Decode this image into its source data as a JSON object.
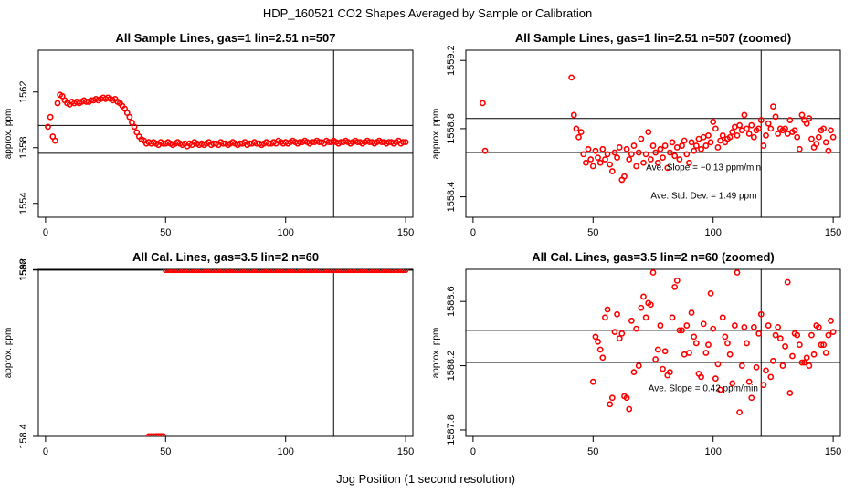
{
  "figure": {
    "title": "HDP_160521  CO2 Shapes Averaged by Sample or Calibration",
    "xlabel": "Jog Position (1 second resolution)"
  },
  "chart_data": [
    {
      "type": "scatter",
      "title": "All Sample Lines, gas=1 lin=2.51 n=507",
      "ylabel": "approx. ppm",
      "xlim": [
        -3,
        153
      ],
      "ylim": [
        1553,
        1565
      ],
      "xticks": [
        0,
        50,
        100,
        150
      ],
      "yticks": [
        1554,
        1558,
        1562
      ],
      "ytick_labels": [
        "1554",
        "1558",
        "1562"
      ],
      "hlines": [
        1559.6,
        1557.6
      ],
      "vlines": [
        120
      ],
      "annotations": [],
      "marker_color": "#ff0000",
      "x": [
        1,
        2,
        3,
        4,
        5,
        6,
        7,
        8,
        9,
        10,
        11,
        12,
        13,
        14,
        15,
        16,
        17,
        18,
        19,
        20,
        21,
        22,
        23,
        24,
        25,
        26,
        27,
        28,
        29,
        30,
        31,
        32,
        33,
        34,
        35,
        36,
        37,
        38,
        39,
        40,
        41,
        42,
        43,
        44,
        45,
        46,
        47,
        48,
        49,
        50,
        51,
        52,
        53,
        54,
        55,
        56,
        57,
        58,
        59,
        60,
        61,
        62,
        63,
        64,
        65,
        66,
        67,
        68,
        69,
        70,
        71,
        72,
        73,
        74,
        75,
        76,
        77,
        78,
        79,
        80,
        81,
        82,
        83,
        84,
        85,
        86,
        87,
        88,
        89,
        90,
        91,
        92,
        93,
        94,
        95,
        96,
        97,
        98,
        99,
        100,
        101,
        102,
        103,
        104,
        105,
        106,
        107,
        108,
        109,
        110,
        111,
        112,
        113,
        114,
        115,
        116,
        117,
        118,
        119,
        120,
        121,
        122,
        123,
        124,
        125,
        126,
        127,
        128,
        129,
        130,
        131,
        132,
        133,
        134,
        135,
        136,
        137,
        138,
        139,
        140,
        141,
        142,
        143,
        144,
        145,
        146,
        147,
        148,
        149,
        150
      ],
      "y": [
        1559.5,
        1560.2,
        1558.8,
        1558.5,
        1561.2,
        1561.8,
        1561.7,
        1561.4,
        1561.2,
        1561.1,
        1561.3,
        1561.2,
        1561.3,
        1561.2,
        1561.3,
        1561.4,
        1561.3,
        1561.3,
        1561.4,
        1561.4,
        1561.5,
        1561.4,
        1561.5,
        1561.6,
        1561.5,
        1561.6,
        1561.5,
        1561.4,
        1561.5,
        1561.3,
        1561.2,
        1561.0,
        1560.8,
        1560.5,
        1560.2,
        1559.8,
        1559.5,
        1559.1,
        1558.8,
        1558.6,
        1558.5,
        1558.3,
        1558.4,
        1558.3,
        1558.4,
        1558.3,
        1558.2,
        1558.4,
        1558.3,
        1558.3,
        1558.4,
        1558.3,
        1558.2,
        1558.3,
        1558.4,
        1558.3,
        1558.2,
        1558.3,
        1558.1,
        1558.3,
        1558.2,
        1558.4,
        1558.3,
        1558.2,
        1558.3,
        1558.2,
        1558.3,
        1558.4,
        1558.2,
        1558.3,
        1558.3,
        1558.2,
        1558.4,
        1558.3,
        1558.3,
        1558.2,
        1558.3,
        1558.4,
        1558.3,
        1558.2,
        1558.3,
        1558.3,
        1558.4,
        1558.2,
        1558.3,
        1558.3,
        1558.4,
        1558.3,
        1558.3,
        1558.2,
        1558.3,
        1558.4,
        1558.3,
        1558.3,
        1558.4,
        1558.3,
        1558.5,
        1558.4,
        1558.3,
        1558.4,
        1558.3,
        1558.4,
        1558.5,
        1558.4,
        1558.3,
        1558.4,
        1558.4,
        1558.5,
        1558.4,
        1558.3,
        1558.4,
        1558.4,
        1558.5,
        1558.4,
        1558.4,
        1558.3,
        1558.5,
        1558.4,
        1558.4,
        1558.5,
        1558.4,
        1558.3,
        1558.4,
        1558.4,
        1558.5,
        1558.4,
        1558.3,
        1558.4,
        1558.5,
        1558.4,
        1558.4,
        1558.3,
        1558.4,
        1558.5,
        1558.4,
        1558.4,
        1558.3,
        1558.4,
        1558.5,
        1558.4,
        1558.4,
        1558.3,
        1558.4,
        1558.4,
        1558.3,
        1558.4,
        1558.5,
        1558.3,
        1558.4,
        1558.4
      ]
    },
    {
      "type": "scatter",
      "title": "All Sample Lines, gas=1 lin=2.51 n=507 (zoomed)",
      "ylabel": "approx. ppm",
      "xlim": [
        -3,
        153
      ],
      "ylim": [
        1558.28,
        1559.26
      ],
      "xticks": [
        0,
        50,
        100,
        150
      ],
      "yticks": [
        1558.4,
        1558.8,
        1559.2
      ],
      "ytick_labels": [
        "1558.4",
        "1558.8",
        "1559.2"
      ],
      "hlines": [
        1558.86,
        1558.66
      ],
      "vlines": [
        120
      ],
      "annotations": [
        {
          "text": "Ave. Slope =  −0.13  ppm/min",
          "x": 72,
          "y": 1558.555
        },
        {
          "text": "Ave. Std. Dev. =  1.49  ppm",
          "x": 74,
          "y": 1558.39
        }
      ],
      "marker_color": "#ff0000",
      "x": [
        4,
        5,
        41,
        42,
        43,
        44,
        45,
        46,
        47,
        48,
        49,
        50,
        51,
        52,
        53,
        54,
        55,
        56,
        57,
        58,
        59,
        60,
        61,
        62,
        63,
        64,
        65,
        66,
        67,
        68,
        69,
        70,
        71,
        72,
        73,
        74,
        75,
        76,
        77,
        78,
        79,
        80,
        81,
        82,
        83,
        84,
        85,
        86,
        87,
        88,
        89,
        90,
        91,
        92,
        93,
        94,
        95,
        96,
        97,
        98,
        99,
        100,
        101,
        102,
        103,
        104,
        105,
        106,
        107,
        108,
        109,
        110,
        111,
        112,
        113,
        114,
        115,
        116,
        117,
        118,
        119,
        120,
        121,
        122,
        123,
        124,
        125,
        126,
        127,
        128,
        129,
        130,
        131,
        132,
        133,
        134,
        135,
        136,
        137,
        138,
        139,
        140,
        141,
        142,
        143,
        144,
        145,
        146,
        147,
        148,
        149,
        150
      ],
      "y": [
        1558.95,
        1558.67,
        1559.1,
        1558.88,
        1558.8,
        1558.75,
        1558.78,
        1558.65,
        1558.6,
        1558.68,
        1558.62,
        1558.58,
        1558.67,
        1558.63,
        1558.6,
        1558.68,
        1558.62,
        1558.65,
        1558.59,
        1558.55,
        1558.66,
        1558.63,
        1558.69,
        1558.5,
        1558.52,
        1558.68,
        1558.62,
        1558.65,
        1558.7,
        1558.58,
        1558.66,
        1558.74,
        1558.6,
        1558.65,
        1558.78,
        1558.62,
        1558.7,
        1558.66,
        1558.6,
        1558.68,
        1558.63,
        1558.7,
        1558.57,
        1558.66,
        1558.72,
        1558.64,
        1558.69,
        1558.62,
        1558.7,
        1558.73,
        1558.65,
        1558.6,
        1558.72,
        1558.67,
        1558.7,
        1558.74,
        1558.68,
        1558.75,
        1558.7,
        1558.76,
        1558.72,
        1558.84,
        1558.8,
        1558.69,
        1558.73,
        1558.76,
        1558.72,
        1558.74,
        1558.75,
        1558.78,
        1558.81,
        1558.76,
        1558.82,
        1558.79,
        1558.88,
        1558.8,
        1558.77,
        1558.82,
        1558.75,
        1558.79,
        1558.8,
        1558.85,
        1558.7,
        1558.76,
        1558.83,
        1558.8,
        1558.93,
        1558.87,
        1558.77,
        1558.8,
        1558.79,
        1558.8,
        1558.77,
        1558.85,
        1558.78,
        1558.79,
        1558.75,
        1558.68,
        1558.88,
        1558.85,
        1558.83,
        1558.86,
        1558.74,
        1558.69,
        1558.71,
        1558.75,
        1558.79,
        1558.8,
        1558.72,
        1558.67,
        1558.79,
        1558.75
      ]
    },
    {
      "type": "scatter",
      "title": "All Cal. Lines, gas=3.5 lin=2 n=60",
      "ylabel": "approx. ppm",
      "xlim": [
        -3,
        153
      ],
      "ylim": [
        158.2,
        1594
      ],
      "xticks": [
        0,
        50,
        100,
        150
      ],
      "yticks": [
        158.4,
        1588,
        1592
      ],
      "ytick_labels": [
        "158.4",
        "1588",
        "1592"
      ],
      "hlines": [
        1589.2,
        1587.2
      ],
      "vlines": [
        120
      ],
      "annotations": [],
      "marker_color": "#ff0000",
      "x": [
        43,
        44,
        45,
        46,
        47,
        48,
        49,
        50,
        51,
        52,
        53,
        54,
        55,
        56,
        57,
        58,
        59,
        60,
        61,
        62,
        63,
        64,
        65,
        66,
        67,
        68,
        69,
        70,
        71,
        72,
        73,
        74,
        75,
        76,
        77,
        78,
        79,
        80,
        81,
        82,
        83,
        84,
        85,
        86,
        87,
        88,
        89,
        90,
        91,
        92,
        93,
        94,
        95,
        96,
        97,
        98,
        99,
        100,
        101,
        102,
        103,
        104,
        105,
        106,
        107,
        108,
        109,
        110,
        111,
        112,
        113,
        114,
        115,
        116,
        117,
        118,
        119,
        120,
        121,
        122,
        123,
        124,
        125,
        126,
        127,
        128,
        129,
        130,
        131,
        132,
        133,
        134,
        135,
        136,
        137,
        138,
        139,
        140,
        141,
        142,
        143,
        144,
        145,
        146,
        147,
        148,
        149,
        150
      ],
      "y": [
        158.5,
        159.1,
        159.4,
        159.6,
        159.8,
        160.0,
        160.2,
        1588.3,
        1588.1,
        1588.4,
        1588.2,
        1588.3,
        1588.1,
        1588.4,
        1588.2,
        1588.0,
        1588.3,
        1588.1,
        1588.2,
        1588.3,
        1588.0,
        1588.2,
        1588.4,
        1588.3,
        1588.1,
        1588.2,
        1588.0,
        1588.3,
        1588.2,
        1588.4,
        1588.3,
        1588.5,
        1588.2,
        1588.3,
        1588.1,
        1588.2,
        1588.3,
        1588.1,
        1588.4,
        1588.2,
        1588.3,
        1588.5,
        1588.2,
        1588.1,
        1588.3,
        1588.4,
        1588.2,
        1588.3,
        1588.1,
        1588.2,
        1588.4,
        1588.3,
        1588.2,
        1588.4,
        1588.3,
        1588.1,
        1588.2,
        1588.3,
        1588.4,
        1588.2,
        1588.3,
        1588.1,
        1588.2,
        1588.4,
        1588.3,
        1588.2,
        1588.3,
        1588.4,
        1588.2,
        1588.1,
        1588.3,
        1588.2,
        1588.4,
        1588.3,
        1588.2,
        1588.1,
        1588.3,
        1588.2,
        1588.4,
        1588.2,
        1588.3,
        1588.1,
        1588.2,
        1588.3,
        1588.4,
        1588.2,
        1588.3,
        1588.2,
        1588.4,
        1588.3,
        1588.5,
        1588.2,
        1588.3,
        1588.1,
        1588.4,
        1588.2,
        1588.3,
        1588.2,
        1588.4,
        1588.3,
        1588.2,
        1588.3,
        1588.2,
        1588.4,
        1588.3,
        1588.2,
        1588.3,
        1588.4
      ]
    },
    {
      "type": "scatter",
      "title": "All Cal. Lines, gas=3.5 lin=2 n=60 (zoomed)",
      "ylabel": "approx. ppm",
      "xlim": [
        -3,
        153
      ],
      "ylim": [
        1587.76,
        1588.8
      ],
      "xticks": [
        0,
        50,
        100,
        150
      ],
      "yticks": [
        1587.8,
        1588.2,
        1588.6
      ],
      "ytick_labels": [
        "1587.8",
        "1588.2",
        "1588.6"
      ],
      "hlines": [
        1588.42,
        1588.22
      ],
      "vlines": [
        120
      ],
      "annotations": [
        {
          "text": "Ave. Slope =  0.42  ppm/min",
          "x": 73,
          "y": 1588.04
        }
      ],
      "marker_color": "#ff0000",
      "x": [
        50,
        51,
        52,
        53,
        54,
        55,
        56,
        57,
        58,
        59,
        60,
        61,
        62,
        63,
        64,
        65,
        66,
        67,
        68,
        69,
        70,
        71,
        72,
        73,
        74,
        75,
        76,
        77,
        78,
        79,
        80,
        81,
        82,
        83,
        84,
        85,
        86,
        87,
        88,
        89,
        90,
        91,
        92,
        93,
        94,
        95,
        96,
        97,
        98,
        99,
        100,
        101,
        102,
        103,
        104,
        105,
        106,
        107,
        108,
        109,
        110,
        111,
        112,
        113,
        114,
        115,
        116,
        117,
        118,
        119,
        120,
        121,
        122,
        123,
        124,
        125,
        126,
        127,
        128,
        129,
        130,
        131,
        132,
        133,
        134,
        135,
        136,
        137,
        138,
        139,
        140,
        141,
        142,
        143,
        144,
        145,
        146,
        147,
        148,
        149,
        150
      ],
      "y": [
        1588.1,
        1588.38,
        1588.35,
        1588.3,
        1588.25,
        1588.5,
        1588.55,
        1587.96,
        1588.0,
        1588.41,
        1588.52,
        1588.37,
        1588.4,
        1588.01,
        1588.0,
        1587.93,
        1588.48,
        1588.16,
        1588.43,
        1588.2,
        1588.56,
        1588.63,
        1588.5,
        1588.59,
        1588.58,
        1588.78,
        1588.24,
        1588.3,
        1588.45,
        1588.18,
        1588.29,
        1588.14,
        1588.16,
        1588.5,
        1588.69,
        1588.73,
        1588.42,
        1588.42,
        1588.27,
        1588.45,
        1588.28,
        1588.53,
        1588.38,
        1588.34,
        1588.15,
        1588.13,
        1588.46,
        1588.28,
        1588.33,
        1588.65,
        1588.43,
        1588.12,
        1588.21,
        1588.05,
        1588.5,
        1588.38,
        1588.34,
        1588.27,
        1588.09,
        1588.45,
        1588.78,
        1587.91,
        1588.2,
        1588.44,
        1588.34,
        1588.1,
        1588.0,
        1588.44,
        1588.19,
        1588.4,
        1588.52,
        1588.08,
        1588.17,
        1588.45,
        1588.13,
        1588.23,
        1588.39,
        1588.44,
        1588.37,
        1588.2,
        1588.32,
        1588.72,
        1588.03,
        1588.26,
        1588.4,
        1588.39,
        1588.33,
        1588.22,
        1588.22,
        1588.25,
        1588.2,
        1588.39,
        1588.27,
        1588.45,
        1588.44,
        1588.33,
        1588.33,
        1588.28,
        1588.39,
        1588.48,
        1588.41
      ]
    }
  ]
}
